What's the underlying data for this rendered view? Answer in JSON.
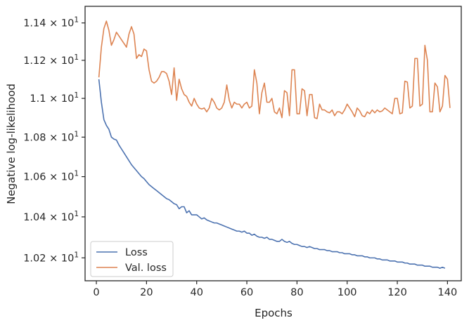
{
  "chart_data": {
    "type": "line",
    "title": "",
    "xlabel": "Epochs",
    "ylabel": "Negative log-likelihood",
    "x_ticks": [
      0,
      20,
      40,
      60,
      80,
      100,
      120,
      140
    ],
    "y_ticks": [
      10.2,
      10.4,
      10.6,
      10.8,
      11.0,
      11.2,
      11.4
    ],
    "y_tick_labels": [
      {
        "mantissa": "1.02",
        "base": "10",
        "exp": "1"
      },
      {
        "mantissa": "1.04",
        "base": "10",
        "exp": "1"
      },
      {
        "mantissa": "1.06",
        "base": "10",
        "exp": "1"
      },
      {
        "mantissa": "1.08",
        "base": "10",
        "exp": "1"
      },
      {
        "mantissa": "1.1",
        "base": "10",
        "exp": "1"
      },
      {
        "mantissa": "1.12",
        "base": "10",
        "exp": "1"
      },
      {
        "mantissa": "1.14",
        "base": "10",
        "exp": "1"
      }
    ],
    "xlim": [
      -4.5,
      145.5
    ],
    "ylim": [
      10.09,
      11.49
    ],
    "y_scale": "log",
    "grid": false,
    "legend_position": "lower-left",
    "series": [
      {
        "name": "Loss",
        "color": "#4c72b0",
        "values": [
          11.1,
          10.98,
          10.89,
          10.86,
          10.84,
          10.8,
          10.79,
          10.785,
          10.76,
          10.74,
          10.72,
          10.7,
          10.68,
          10.66,
          10.645,
          10.63,
          10.615,
          10.6,
          10.59,
          10.575,
          10.56,
          10.55,
          10.54,
          10.53,
          10.52,
          10.51,
          10.5,
          10.49,
          10.485,
          10.475,
          10.465,
          10.46,
          10.44,
          10.45,
          10.45,
          10.42,
          10.43,
          10.41,
          10.41,
          10.41,
          10.4,
          10.39,
          10.395,
          10.385,
          10.38,
          10.375,
          10.37,
          10.37,
          10.365,
          10.36,
          10.355,
          10.35,
          10.345,
          10.34,
          10.335,
          10.33,
          10.33,
          10.325,
          10.33,
          10.32,
          10.32,
          10.31,
          10.315,
          10.305,
          10.3,
          10.3,
          10.295,
          10.3,
          10.29,
          10.29,
          10.285,
          10.28,
          10.28,
          10.29,
          10.28,
          10.275,
          10.28,
          10.27,
          10.265,
          10.265,
          10.26,
          10.255,
          10.255,
          10.25,
          10.255,
          10.25,
          10.245,
          10.245,
          10.24,
          10.24,
          10.24,
          10.235,
          10.235,
          10.23,
          10.23,
          10.23,
          10.225,
          10.225,
          10.22,
          10.22,
          10.22,
          10.215,
          10.215,
          10.21,
          10.21,
          10.21,
          10.205,
          10.205,
          10.2,
          10.2,
          10.2,
          10.195,
          10.195,
          10.19,
          10.19,
          10.19,
          10.185,
          10.185,
          10.185,
          10.18,
          10.18,
          10.18,
          10.175,
          10.175,
          10.17,
          10.17,
          10.17,
          10.165,
          10.165,
          10.165,
          10.16,
          10.16,
          10.16,
          10.155,
          10.155,
          10.155,
          10.15,
          10.155,
          10.15
        ]
      },
      {
        "name": "Val. loss",
        "color": "#dd8452",
        "values": [
          11.11,
          11.27,
          11.37,
          11.41,
          11.36,
          11.28,
          11.31,
          11.35,
          11.33,
          11.31,
          11.29,
          11.27,
          11.34,
          11.38,
          11.34,
          11.21,
          11.23,
          11.22,
          11.26,
          11.25,
          11.15,
          11.09,
          11.08,
          11.09,
          11.11,
          11.14,
          11.14,
          11.13,
          11.09,
          11.02,
          11.16,
          10.99,
          11.1,
          11.05,
          11.02,
          11.01,
          10.98,
          10.96,
          11.0,
          10.97,
          10.95,
          10.945,
          10.95,
          10.93,
          10.95,
          11.0,
          10.98,
          10.95,
          10.94,
          10.95,
          10.98,
          11.07,
          10.99,
          10.95,
          10.98,
          10.97,
          10.97,
          10.95,
          10.97,
          10.98,
          10.95,
          10.96,
          11.15,
          11.08,
          10.92,
          11.03,
          11.08,
          10.98,
          10.98,
          11.0,
          10.93,
          10.92,
          10.95,
          10.9,
          11.04,
          11.03,
          10.91,
          11.15,
          11.15,
          10.92,
          10.92,
          11.05,
          11.04,
          10.91,
          11.02,
          11.02,
          10.9,
          10.895,
          10.97,
          10.94,
          10.94,
          10.93,
          10.925,
          10.94,
          10.91,
          10.93,
          10.93,
          10.92,
          10.94,
          10.97,
          10.95,
          10.93,
          10.905,
          10.95,
          10.935,
          10.91,
          10.905,
          10.93,
          10.92,
          10.94,
          10.925,
          10.94,
          10.93,
          10.935,
          10.95,
          10.94,
          10.93,
          10.92,
          11.0,
          11.0,
          10.92,
          10.925,
          11.09,
          11.085,
          10.95,
          10.96,
          11.21,
          11.21,
          10.96,
          10.97,
          11.28,
          11.2,
          10.93,
          10.93,
          11.08,
          11.06,
          10.93,
          10.96,
          11.12,
          11.1,
          10.95
        ]
      }
    ]
  }
}
